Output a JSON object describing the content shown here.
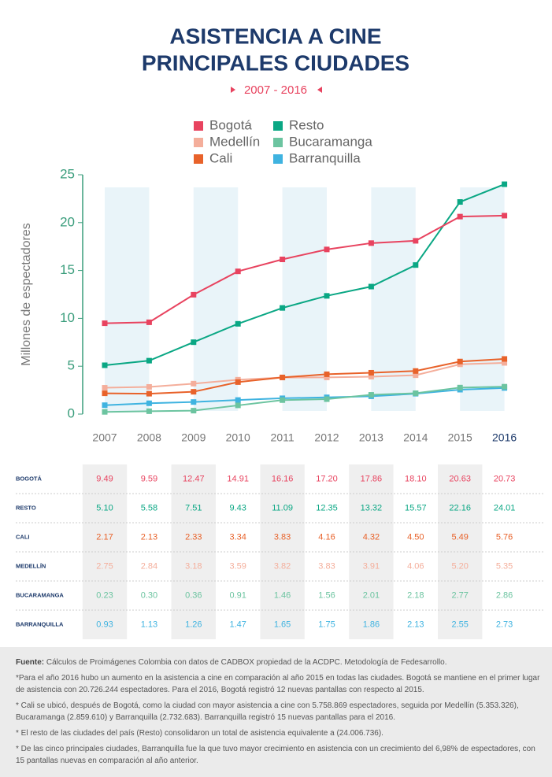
{
  "chart_data": {
    "type": "line",
    "title_lines": [
      "ASISTENCIA A CINE",
      "PRINCIPALES CIUDADES"
    ],
    "subtitle": "2007 - 2016",
    "y_label": "Millones de espectadores",
    "categories": [
      "2007",
      "2008",
      "2009",
      "2010",
      "2011",
      "2012",
      "2013",
      "2014",
      "2015",
      "2016"
    ],
    "ylim": [
      0,
      25
    ],
    "yticks": [
      0,
      5,
      10,
      15,
      20,
      25
    ],
    "series": [
      {
        "name": "Bogotá",
        "color": "#e8435f",
        "values": [
          9.49,
          9.59,
          12.47,
          14.91,
          16.16,
          17.2,
          17.86,
          18.1,
          20.63,
          20.73
        ],
        "value_labels": [
          "9.49",
          "9.59",
          "12.47",
          "14.91",
          "16.16",
          "17.20",
          "17.86",
          "18.10",
          "20.63",
          "20.73"
        ]
      },
      {
        "name": "Resto",
        "color": "#0aa784",
        "values": [
          5.1,
          5.58,
          7.51,
          9.43,
          11.09,
          12.35,
          13.32,
          15.57,
          22.16,
          24.01
        ],
        "value_labels": [
          "5.10",
          "5.58",
          "7.51",
          "9.43",
          "11.09",
          "12.35",
          "13.32",
          "15.57",
          "22.16",
          "24.01"
        ]
      },
      {
        "name": "Cali",
        "color": "#e8622a",
        "values": [
          2.17,
          2.13,
          2.33,
          3.34,
          3.83,
          4.16,
          4.32,
          4.5,
          5.49,
          5.76
        ],
        "value_labels": [
          "2.17",
          "2.13",
          "2.33",
          "3.34",
          "3.83",
          "4.16",
          "4.32",
          "4.50",
          "5.49",
          "5.76"
        ]
      },
      {
        "name": "Medellín",
        "color": "#f4ae9b",
        "values": [
          2.75,
          2.84,
          3.18,
          3.59,
          3.82,
          3.83,
          3.91,
          4.06,
          5.2,
          5.35
        ],
        "value_labels": [
          "2.75",
          "2.84",
          "3.18",
          "3.59",
          "3.82",
          "3.83",
          "3.91",
          "4.06",
          "5.20",
          "5.35"
        ]
      },
      {
        "name": "Bucaramanga",
        "color": "#6cc4a0",
        "values": [
          0.23,
          0.3,
          0.36,
          0.91,
          1.46,
          1.56,
          2.01,
          2.18,
          2.77,
          2.86
        ],
        "value_labels": [
          "0.23",
          "0.30",
          "0.36",
          "0.91",
          "1.46",
          "1.56",
          "2.01",
          "2.18",
          "2.77",
          "2.86"
        ]
      },
      {
        "name": "Barranquilla",
        "color": "#3fb3e0",
        "values": [
          0.93,
          1.13,
          1.26,
          1.47,
          1.65,
          1.75,
          1.86,
          2.13,
          2.55,
          2.73
        ],
        "value_labels": [
          "0.93",
          "1.13",
          "1.26",
          "1.47",
          "1.65",
          "1.75",
          "1.86",
          "2.13",
          "2.55",
          "2.73"
        ]
      }
    ]
  },
  "table": {
    "row_labels": [
      "BOGOTÁ",
      "RESTO",
      "CALI",
      "MEDELLÍN",
      "BUCARAMANGA",
      "BARRANQUILLA"
    ]
  },
  "notes": {
    "source_label": "Fuente:",
    "source": "Cálculos de Proimágenes Colombia con datos de CADBOX propiedad de la ACDPC. Metodología de Fedesarrollo.",
    "items": [
      "*Para el año 2016 hubo un aumento en la asistencia a cine en comparación al año 2015 en todas las ciudades.  Bogotá se mantiene en el primer lugar de asistencia con 20.726.244 espectadores. Para el 2016, Bogotá registró 12 nuevas pantallas con respecto al 2015.",
      "* Cali se ubicó, después de Bogotá, como la ciudad con mayor asistencia a cine con 5.758.869 espectadores, seguida por Medellín (5.353.326), Bucaramanga (2.859.610) y Barranquilla (2.732.683). Barranquilla registró 15 nuevas pantallas para el 2016.",
      "* El resto de las ciudades del país (Resto) consolidaron un total de asistencia equivalente a (24.006.736).",
      "* De las cinco principales ciudades, Barranquilla fue la que tuvo mayor crecimiento en asistencia con un crecimiento del 6,98% de espectadores, con 15 pantallas nuevas en comparación al año anterior."
    ]
  }
}
